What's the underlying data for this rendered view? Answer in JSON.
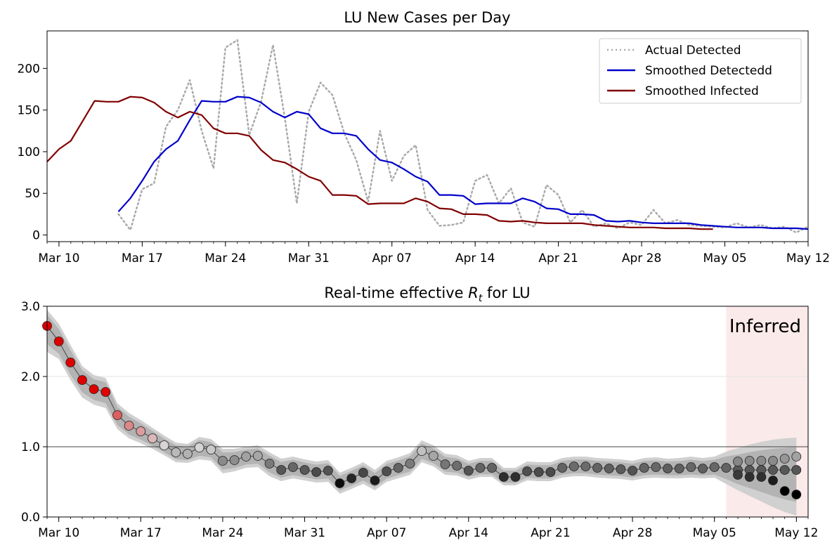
{
  "chart_data": [
    {
      "type": "line",
      "title": "LU New Cases per Day",
      "xlabel": "",
      "ylabel": "",
      "x_range": [
        "2020-03-09",
        "2020-05-12"
      ],
      "ylim": [
        -8,
        245
      ],
      "xticks": [
        {
          "date": "2020-03-10",
          "label": "Mar 10"
        },
        {
          "date": "2020-03-17",
          "label": "Mar 17"
        },
        {
          "date": "2020-03-24",
          "label": "Mar 24"
        },
        {
          "date": "2020-03-31",
          "label": "Mar 31"
        },
        {
          "date": "2020-04-07",
          "label": "Apr 07"
        },
        {
          "date": "2020-04-14",
          "label": "Apr 14"
        },
        {
          "date": "2020-04-21",
          "label": "Apr 21"
        },
        {
          "date": "2020-04-28",
          "label": "Apr 28"
        },
        {
          "date": "2020-05-05",
          "label": "May 05"
        },
        {
          "date": "2020-05-12",
          "label": "May 12"
        }
      ],
      "yticks": [
        0,
        50,
        100,
        150,
        200
      ],
      "legend_position": "top-right",
      "series": [
        {
          "name": "Actual Detected",
          "color": "#aaaaaa",
          "style": "dotted",
          "x": [
            "2020-03-15",
            "2020-03-16",
            "2020-03-17",
            "2020-03-18",
            "2020-03-19",
            "2020-03-20",
            "2020-03-21",
            "2020-03-22",
            "2020-03-23",
            "2020-03-24",
            "2020-03-25",
            "2020-03-26",
            "2020-03-27",
            "2020-03-28",
            "2020-03-29",
            "2020-03-30",
            "2020-03-31",
            "2020-04-01",
            "2020-04-02",
            "2020-04-03",
            "2020-04-04",
            "2020-04-05",
            "2020-04-06",
            "2020-04-07",
            "2020-04-08",
            "2020-04-09",
            "2020-04-10",
            "2020-04-11",
            "2020-04-12",
            "2020-04-13",
            "2020-04-14",
            "2020-04-15",
            "2020-04-16",
            "2020-04-17",
            "2020-04-18",
            "2020-04-19",
            "2020-04-20",
            "2020-04-21",
            "2020-04-22",
            "2020-04-23",
            "2020-04-24",
            "2020-04-25",
            "2020-04-26",
            "2020-04-27",
            "2020-04-28",
            "2020-04-29",
            "2020-04-30",
            "2020-05-01",
            "2020-05-02",
            "2020-05-03",
            "2020-05-04",
            "2020-05-05",
            "2020-05-06",
            "2020-05-07",
            "2020-05-08",
            "2020-05-09",
            "2020-05-10",
            "2020-05-11",
            "2020-05-12"
          ],
          "values": [
            25,
            6,
            55,
            62,
            130,
            150,
            186,
            125,
            80,
            225,
            234,
            120,
            160,
            228,
            140,
            38,
            148,
            183,
            168,
            122,
            90,
            40,
            125,
            65,
            95,
            108,
            30,
            11,
            12,
            15,
            65,
            72,
            38,
            56,
            15,
            10,
            60,
            48,
            15,
            30,
            10,
            14,
            8,
            15,
            12,
            30,
            14,
            18,
            12,
            11,
            10,
            9,
            14,
            9,
            12,
            8,
            10,
            3,
            10
          ]
        },
        {
          "name": "Smoothed Detectedd",
          "color": "#0000cc",
          "style": "solid",
          "x": [
            "2020-03-15",
            "2020-03-16",
            "2020-03-17",
            "2020-03-18",
            "2020-03-19",
            "2020-03-20",
            "2020-03-21",
            "2020-03-22",
            "2020-03-23",
            "2020-03-24",
            "2020-03-25",
            "2020-03-26",
            "2020-03-27",
            "2020-03-28",
            "2020-03-29",
            "2020-03-30",
            "2020-03-31",
            "2020-04-01",
            "2020-04-02",
            "2020-04-03",
            "2020-04-04",
            "2020-04-05",
            "2020-04-06",
            "2020-04-07",
            "2020-04-08",
            "2020-04-09",
            "2020-04-10",
            "2020-04-11",
            "2020-04-12",
            "2020-04-13",
            "2020-04-14",
            "2020-04-15",
            "2020-04-16",
            "2020-04-17",
            "2020-04-18",
            "2020-04-19",
            "2020-04-20",
            "2020-04-21",
            "2020-04-22",
            "2020-04-23",
            "2020-04-24",
            "2020-04-25",
            "2020-04-26",
            "2020-04-27",
            "2020-04-28",
            "2020-04-29",
            "2020-04-30",
            "2020-05-01",
            "2020-05-02",
            "2020-05-03",
            "2020-05-04",
            "2020-05-05",
            "2020-05-06",
            "2020-05-07",
            "2020-05-08",
            "2020-05-09",
            "2020-05-10",
            "2020-05-11",
            "2020-05-12"
          ],
          "values": [
            28,
            44,
            65,
            88,
            103,
            113,
            138,
            161,
            160,
            160,
            166,
            165,
            159,
            148,
            141,
            148,
            145,
            128,
            122,
            122,
            119,
            103,
            90,
            87,
            79,
            70,
            64,
            48,
            48,
            47,
            37,
            38,
            38,
            38,
            44,
            40,
            32,
            31,
            25,
            25,
            24,
            17,
            16,
            17,
            15,
            14,
            14,
            14,
            14,
            12,
            11,
            10,
            9,
            9,
            9,
            8,
            8,
            8,
            7
          ]
        },
        {
          "name": "Smoothed Infected",
          "color": "#800000",
          "style": "solid",
          "x": [
            "2020-03-09",
            "2020-03-10",
            "2020-03-11",
            "2020-03-12",
            "2020-03-13",
            "2020-03-14",
            "2020-03-15",
            "2020-03-16",
            "2020-03-17",
            "2020-03-18",
            "2020-03-19",
            "2020-03-20",
            "2020-03-21",
            "2020-03-22",
            "2020-03-23",
            "2020-03-24",
            "2020-03-25",
            "2020-03-26",
            "2020-03-27",
            "2020-03-28",
            "2020-03-29",
            "2020-03-30",
            "2020-03-31",
            "2020-04-01",
            "2020-04-02",
            "2020-04-03",
            "2020-04-04",
            "2020-04-05",
            "2020-04-06",
            "2020-04-07",
            "2020-04-08",
            "2020-04-09",
            "2020-04-10",
            "2020-04-11",
            "2020-04-12",
            "2020-04-13",
            "2020-04-14",
            "2020-04-15",
            "2020-04-16",
            "2020-04-17",
            "2020-04-18",
            "2020-04-19",
            "2020-04-20",
            "2020-04-21",
            "2020-04-22",
            "2020-04-23",
            "2020-04-24",
            "2020-04-25",
            "2020-04-26",
            "2020-04-27",
            "2020-04-28",
            "2020-04-29",
            "2020-04-30",
            "2020-05-01",
            "2020-05-02",
            "2020-05-03",
            "2020-05-04"
          ],
          "values": [
            88,
            103,
            113,
            137,
            161,
            160,
            160,
            166,
            165,
            159,
            148,
            141,
            148,
            144,
            128,
            122,
            122,
            119,
            102,
            90,
            87,
            79,
            70,
            65,
            48,
            48,
            47,
            37,
            38,
            38,
            38,
            44,
            40,
            32,
            31,
            25,
            25,
            24,
            17,
            16,
            17,
            15,
            14,
            14,
            14,
            14,
            12,
            11,
            10,
            9,
            9,
            9,
            8,
            8,
            8,
            7,
            7
          ]
        }
      ]
    },
    {
      "type": "scatter",
      "title": "Real-time effective R_t for LU",
      "title_parts": {
        "prefix": "Real-time effective ",
        "symbol": "R",
        "subscript": "t",
        "suffix": " for LU"
      },
      "xlabel": "",
      "ylabel": "",
      "x_range": [
        "2020-03-09",
        "2020-05-13"
      ],
      "ylim": [
        0,
        3
      ],
      "yticks": [
        {
          "value": 0,
          "label": "0.0"
        },
        {
          "value": 1,
          "label": "1.0"
        },
        {
          "value": 2,
          "label": "2.0"
        },
        {
          "value": 3,
          "label": "3.0"
        }
      ],
      "xticks": [
        {
          "date": "2020-03-10",
          "label": "Mar 10"
        },
        {
          "date": "2020-03-17",
          "label": "Mar 17"
        },
        {
          "date": "2020-03-24",
          "label": "Mar 24"
        },
        {
          "date": "2020-03-31",
          "label": "Mar 31"
        },
        {
          "date": "2020-04-07",
          "label": "Apr 07"
        },
        {
          "date": "2020-04-14",
          "label": "Apr 14"
        },
        {
          "date": "2020-04-21",
          "label": "Apr 21"
        },
        {
          "date": "2020-04-28",
          "label": "Apr 28"
        },
        {
          "date": "2020-05-05",
          "label": "May 05"
        },
        {
          "date": "2020-05-12",
          "label": "May 12"
        }
      ],
      "reference_line": 1.0,
      "grid": "horizontal",
      "shaded_region": {
        "label": "Inferred",
        "from": "2020-05-06",
        "to": "2020-05-13",
        "color": "#fbeaea"
      },
      "colors": {
        "high": "#dd0000",
        "neutral": "#d9d9d9",
        "low": "#000000",
        "band": "#b3b3b3",
        "band_light": "#d0d0d0"
      },
      "series": [
        {
          "name": "",
          "x": [
            "2020-03-09",
            "2020-03-10",
            "2020-03-11",
            "2020-03-12",
            "2020-03-13",
            "2020-03-14",
            "2020-03-15",
            "2020-03-16",
            "2020-03-17",
            "2020-03-18",
            "2020-03-19",
            "2020-03-20",
            "2020-03-21",
            "2020-03-22",
            "2020-03-23",
            "2020-03-24",
            "2020-03-25",
            "2020-03-26",
            "2020-03-27",
            "2020-03-28",
            "2020-03-29",
            "2020-03-30",
            "2020-03-31",
            "2020-04-01",
            "2020-04-02",
            "2020-04-03",
            "2020-04-04",
            "2020-04-05",
            "2020-04-06",
            "2020-04-07",
            "2020-04-08",
            "2020-04-09",
            "2020-04-10",
            "2020-04-11",
            "2020-04-12",
            "2020-04-13",
            "2020-04-14",
            "2020-04-15",
            "2020-04-16",
            "2020-04-17",
            "2020-04-18",
            "2020-04-19",
            "2020-04-20",
            "2020-04-21",
            "2020-04-22",
            "2020-04-23",
            "2020-04-24",
            "2020-04-25",
            "2020-04-26",
            "2020-04-27",
            "2020-04-28",
            "2020-04-29",
            "2020-04-30",
            "2020-05-01",
            "2020-05-02",
            "2020-05-03",
            "2020-05-04",
            "2020-05-05",
            "2020-05-06",
            "2020-05-07",
            "2020-05-08",
            "2020-05-09",
            "2020-05-10",
            "2020-05-11",
            "2020-05-12"
          ],
          "values": [
            2.72,
            2.5,
            2.2,
            1.95,
            1.82,
            1.78,
            1.45,
            1.3,
            1.22,
            1.12,
            1.02,
            0.92,
            0.9,
            0.99,
            0.96,
            0.8,
            0.81,
            0.86,
            0.87,
            0.76,
            0.67,
            0.71,
            0.67,
            0.64,
            0.66,
            0.48,
            0.55,
            0.63,
            0.52,
            0.65,
            0.7,
            0.76,
            0.94,
            0.87,
            0.75,
            0.73,
            0.66,
            0.7,
            0.7,
            0.57,
            0.57,
            0.65,
            0.64,
            0.64,
            0.7,
            0.72,
            0.72,
            0.7,
            0.69,
            0.68,
            0.66,
            0.7,
            0.71,
            0.69,
            0.69,
            0.71,
            0.69,
            0.71,
            0.7,
            0.67,
            0.67,
            0.67,
            0.67,
            0.67,
            0.67
          ],
          "lower": [
            2.35,
            2.25,
            1.95,
            1.7,
            1.6,
            1.55,
            1.25,
            1.12,
            1.05,
            0.97,
            0.88,
            0.78,
            0.77,
            0.82,
            0.8,
            0.62,
            0.65,
            0.7,
            0.71,
            0.58,
            0.51,
            0.55,
            0.52,
            0.49,
            0.5,
            0.33,
            0.4,
            0.47,
            0.38,
            0.5,
            0.55,
            0.6,
            0.78,
            0.72,
            0.6,
            0.59,
            0.53,
            0.57,
            0.57,
            0.45,
            0.45,
            0.52,
            0.51,
            0.51,
            0.56,
            0.58,
            0.58,
            0.56,
            0.55,
            0.54,
            0.52,
            0.55,
            0.56,
            0.55,
            0.55,
            0.56,
            0.55,
            0.56,
            0.47,
            0.38,
            0.3,
            0.22,
            0.14,
            0.07,
            0.02
          ],
          "upper": [
            2.95,
            2.75,
            2.45,
            2.15,
            2.02,
            1.98,
            1.62,
            1.48,
            1.38,
            1.27,
            1.16,
            1.06,
            1.04,
            1.14,
            1.11,
            0.97,
            0.97,
            1.0,
            1.02,
            0.92,
            0.83,
            0.86,
            0.82,
            0.79,
            0.81,
            0.63,
            0.7,
            0.78,
            0.67,
            0.8,
            0.85,
            0.91,
            1.09,
            1.02,
            0.9,
            0.88,
            0.8,
            0.84,
            0.84,
            0.7,
            0.7,
            0.79,
            0.78,
            0.78,
            0.84,
            0.86,
            0.86,
            0.84,
            0.83,
            0.82,
            0.8,
            0.84,
            0.85,
            0.83,
            0.84,
            0.86,
            0.84,
            0.86,
            0.93,
            0.98,
            1.03,
            1.07,
            1.1,
            1.12,
            1.13
          ]
        },
        {
          "name": "",
          "x": [
            "2020-05-07",
            "2020-05-08",
            "2020-05-09",
            "2020-05-10",
            "2020-05-11",
            "2020-05-12"
          ],
          "values": [
            0.79,
            0.8,
            0.8,
            0.8,
            0.83,
            0.86
          ]
        },
        {
          "name": "",
          "x": [
            "2020-05-07",
            "2020-05-08",
            "2020-05-09",
            "2020-05-10",
            "2020-05-11",
            "2020-05-12"
          ],
          "values": [
            0.6,
            0.57,
            0.57,
            0.52,
            0.37,
            0.32
          ]
        }
      ]
    }
  ]
}
